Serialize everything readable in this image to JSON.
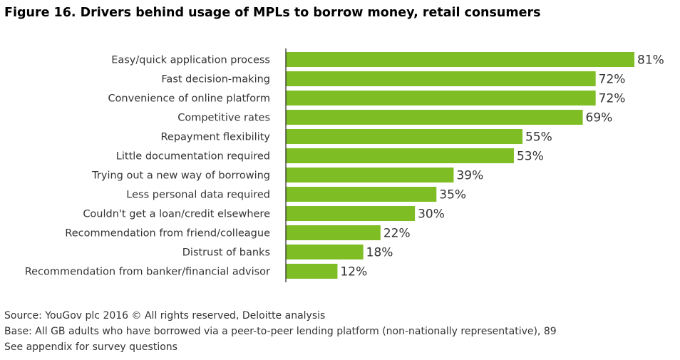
{
  "figure": {
    "title": "Figure 16. Drivers behind usage of MPLs to borrow money, retail consumers"
  },
  "chart_data": {
    "type": "bar",
    "orientation": "horizontal",
    "title": "Figure 16. Drivers behind usage of MPLs to borrow money, retail consumers",
    "categories": [
      "Easy/quick application process",
      "Fast decision-making",
      "Convenience of online platform",
      "Competitive rates",
      "Repayment flexibility",
      "Little documentation required",
      "Trying out a new way of borrowing",
      "Less personal data required",
      "Couldn't get a loan/credit elsewhere",
      "Recommendation from friend/colleague",
      "Distrust of banks",
      "Recommendation from banker/financial advisor"
    ],
    "values": [
      81,
      72,
      72,
      69,
      55,
      53,
      39,
      35,
      30,
      22,
      18,
      12
    ],
    "value_labels": [
      "81%",
      "72%",
      "72%",
      "69%",
      "55%",
      "53%",
      "39%",
      "35%",
      "30%",
      "22%",
      "18%",
      "12%"
    ],
    "unit": "%",
    "xlim": [
      0,
      100
    ],
    "grid": false,
    "bar_color": "#7ebd24",
    "axis_color": "#222222"
  },
  "notes": {
    "source": "Source: YouGov plc 2016 © All rights reserved, Deloitte analysis",
    "base": "Base: All GB adults who have borrowed via a peer-to-peer lending platform (non-nationally representative), 89",
    "appendix": "See appendix for survey questions"
  }
}
